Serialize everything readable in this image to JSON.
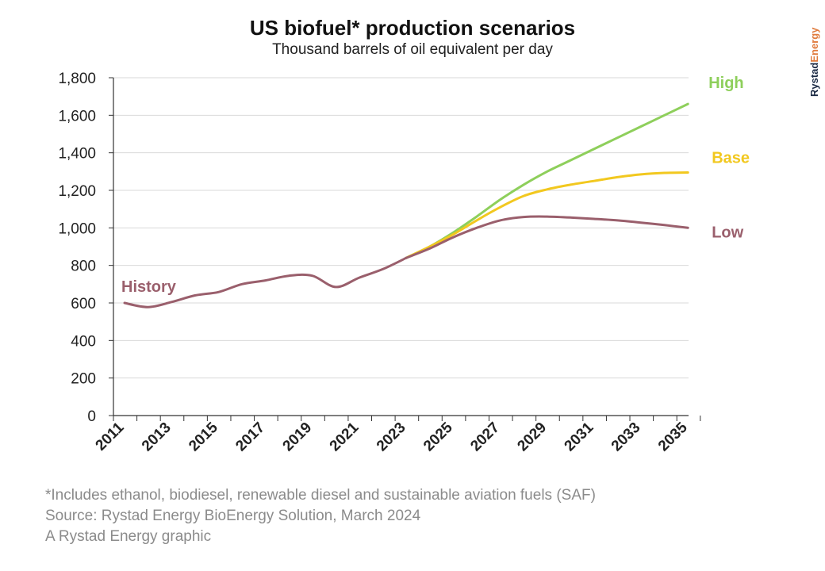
{
  "chart_data": {
    "type": "line",
    "title": "US biofuel* production scenarios",
    "subtitle": "Thousand barrels of oil equivalent per day",
    "xlabel": "",
    "ylabel": "",
    "xlim": [
      2011,
      2035
    ],
    "ylim": [
      0,
      1800
    ],
    "y_ticks": [
      0,
      200,
      400,
      600,
      800,
      1000,
      1200,
      1400,
      1600,
      1800
    ],
    "y_tick_labels": [
      "0",
      "200",
      "400",
      "600",
      "800",
      "1,000",
      "1,200",
      "1,400",
      "1,600",
      "1,800"
    ],
    "x_tick_labels": [
      "2011",
      "2013",
      "2015",
      "2017",
      "2019",
      "2021",
      "2023",
      "2025",
      "2027",
      "2029",
      "2031",
      "2033",
      "2035"
    ],
    "grid": "horizontal",
    "series": [
      {
        "name": "History",
        "color": "#9a5f6c",
        "points": [
          [
            2011,
            600
          ],
          [
            2012,
            578
          ],
          [
            2013,
            605
          ],
          [
            2014,
            640
          ],
          [
            2015,
            658
          ],
          [
            2016,
            700
          ],
          [
            2017,
            720
          ],
          [
            2018,
            745
          ],
          [
            2019,
            745
          ],
          [
            2020,
            685
          ],
          [
            2021,
            735
          ],
          [
            2022,
            780
          ],
          [
            2023,
            840
          ]
        ]
      },
      {
        "name": "High",
        "color": "#8ecf5b",
        "points": [
          [
            2023,
            840
          ],
          [
            2024,
            900
          ],
          [
            2025,
            975
          ],
          [
            2026,
            1060
          ],
          [
            2027,
            1150
          ],
          [
            2028,
            1230
          ],
          [
            2029,
            1300
          ],
          [
            2030,
            1360
          ],
          [
            2031,
            1420
          ],
          [
            2032,
            1480
          ],
          [
            2033,
            1540
          ],
          [
            2034,
            1600
          ],
          [
            2035,
            1660
          ]
        ]
      },
      {
        "name": "Base",
        "color": "#f2c81f",
        "points": [
          [
            2023,
            840
          ],
          [
            2024,
            900
          ],
          [
            2025,
            965
          ],
          [
            2026,
            1040
          ],
          [
            2027,
            1110
          ],
          [
            2028,
            1170
          ],
          [
            2029,
            1205
          ],
          [
            2030,
            1230
          ],
          [
            2031,
            1250
          ],
          [
            2032,
            1270
          ],
          [
            2033,
            1285
          ],
          [
            2034,
            1293
          ],
          [
            2035,
            1295
          ]
        ]
      },
      {
        "name": "Low",
        "color": "#9a5f6c",
        "points": [
          [
            2023,
            840
          ],
          [
            2024,
            890
          ],
          [
            2025,
            950
          ],
          [
            2026,
            1000
          ],
          [
            2027,
            1040
          ],
          [
            2028,
            1058
          ],
          [
            2029,
            1060
          ],
          [
            2030,
            1055
          ],
          [
            2031,
            1048
          ],
          [
            2032,
            1040
          ],
          [
            2033,
            1028
          ],
          [
            2034,
            1015
          ],
          [
            2035,
            1000
          ]
        ]
      }
    ]
  },
  "footnotes": {
    "note": "*Includes ethanol, biodiesel, renewable diesel and sustainable aviation fuels (SAF)",
    "source": "Source: Rystad Energy BioEnergy Solution, March 2024",
    "credit": "A Rystad Energy graphic"
  },
  "brand": {
    "part1": "Rystad",
    "part2": "Energy",
    "color1": "#1b2a44",
    "color2": "#e07a3c"
  }
}
